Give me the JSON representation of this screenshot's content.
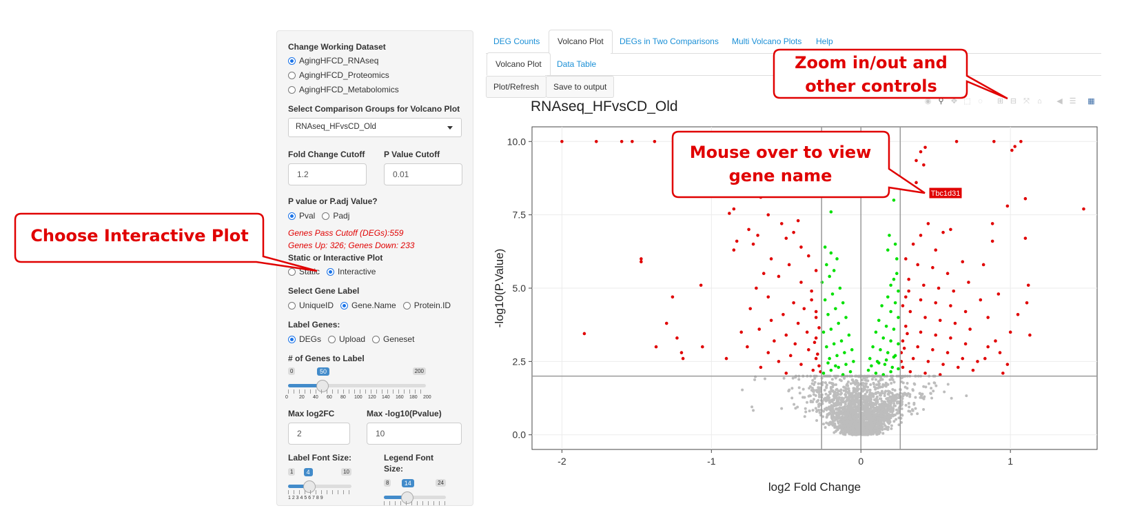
{
  "sidebar": {
    "dataset_label": "Change Working Dataset",
    "datasets": [
      "AgingHFCD_RNAseq",
      "AgingHFCD_Proteomics",
      "AgingHFCD_Metabolomics"
    ],
    "dataset_selected": 0,
    "comparison_label": "Select Comparison Groups for Volcano Plot",
    "comparison_value": "RNAseq_HFvsCD_Old",
    "fc_cutoff_label": "Fold Change Cutoff",
    "fc_cutoff_value": "1.2",
    "p_cutoff_label": "P Value Cutoff",
    "p_cutoff_value": "0.01",
    "pval_type_label": "P value or P.adj Value?",
    "pval_options": [
      "Pval",
      "Padj"
    ],
    "pval_selected": 0,
    "degs_text": "Genes Pass Cutoff (DEGs):559",
    "updown_text": "Genes Up: 326; Genes Down: 233",
    "plot_type_label": "Static or Interactive Plot",
    "plot_type_options": [
      "Static",
      "Interactive"
    ],
    "plot_type_selected": 1,
    "gene_label_label": "Select Gene Label",
    "gene_label_options": [
      "UniqueID",
      "Gene.Name",
      "Protein.ID"
    ],
    "gene_label_selected": 1,
    "label_genes_label": "Label Genes:",
    "label_genes_options": [
      "DEGs",
      "Upload",
      "Geneset"
    ],
    "label_genes_selected": 0,
    "num_genes_label": "# of Genes to Label",
    "num_genes": {
      "min": "0",
      "max": "200",
      "value": "50",
      "fraction": 0.25,
      "ticks": [
        "0",
        "20",
        "40",
        "60",
        "80",
        "100",
        "120",
        "140",
        "160",
        "180",
        "200"
      ]
    },
    "max_log2fc_label": "Max log2FC",
    "max_log2fc_value": "2",
    "max_pval_label": "Max -log10(Pvalue)",
    "max_pval_value": "10",
    "label_font_label": "Label Font Size:",
    "label_font": {
      "min": "1",
      "max": "10",
      "value": "4",
      "fraction": 0.333,
      "ticks": "1 2 3 4 5 6 7 8 9"
    },
    "legend_font_label_1": "Legend Font",
    "legend_font_label_2": "Size:",
    "legend_font": {
      "min": "8",
      "max": "24",
      "value": "14",
      "fraction": 0.375
    }
  },
  "tabs": {
    "main": [
      "DEG Counts",
      "Volcano Plot",
      "DEGs in Two Comparisons",
      "Multi Volcano Plots",
      "Help"
    ],
    "main_active": 1,
    "sub": [
      "Volcano Plot",
      "Data Table"
    ],
    "sub_active": 0,
    "buttons": [
      "Plot/Refresh",
      "Save to output"
    ]
  },
  "plot": {
    "title": "RNAseq_HFvsCD_Old",
    "hover_label": "Tbc1d31",
    "modebar_icons": [
      "camera-icon",
      "zoom-icon",
      "pan-icon",
      "box-select-icon",
      "lasso-icon",
      "zoom-in-icon",
      "zoom-out-icon",
      "autoscale-icon",
      "reset-icon",
      "spike-icon",
      "compare-icon",
      "plotly-logo-icon"
    ]
  },
  "chart_data": {
    "type": "scatter",
    "title": "RNAseq_HFvsCD_Old",
    "xlabel": "log2 Fold Change",
    "ylabel": "-log10(P.Value)",
    "xlim": [
      -2.2,
      1.58
    ],
    "ylim": [
      -0.5,
      10.5
    ],
    "xticks": [
      "-2",
      "-1",
      "0",
      "1"
    ],
    "yticks": [
      "0.0",
      "2.5",
      "5.0",
      "7.5",
      "10.0"
    ],
    "cutoff_x": [
      -0.263,
      0.263
    ],
    "cutoff_y": 2,
    "series": [
      {
        "color": "#e00000",
        "points": [
          [
            -2.0,
            10
          ],
          [
            -1.77,
            10
          ],
          [
            -1.6,
            10
          ],
          [
            -1.53,
            10
          ],
          [
            -1.38,
            10
          ],
          [
            -1.08,
            10
          ],
          [
            -0.92,
            10
          ],
          [
            -0.52,
            10
          ],
          [
            -0.38,
            10
          ],
          [
            0.4,
            9.65
          ],
          [
            0.43,
            9.8
          ],
          [
            0.37,
            9.35
          ],
          [
            0.42,
            9.2
          ],
          [
            0.89,
            10
          ],
          [
            1.07,
            10
          ],
          [
            0.64,
            10
          ],
          [
            1.01,
            9.7
          ],
          [
            1.03,
            9.83
          ],
          [
            1.49,
            7.7
          ],
          [
            1.1,
            8.05
          ],
          [
            0.98,
            7.8
          ],
          [
            0.88,
            7.2
          ],
          [
            1.1,
            6.7
          ],
          [
            0.5,
            8.3
          ],
          [
            0.37,
            8.6
          ],
          [
            0.88,
            6.6
          ],
          [
            -0.47,
            8.5
          ],
          [
            -0.43,
            8.2
          ],
          [
            -0.67,
            8.1
          ],
          [
            -0.93,
            8.2
          ],
          [
            -0.85,
            7.7
          ],
          [
            -0.88,
            7.55
          ],
          [
            -0.42,
            7.3
          ],
          [
            -0.62,
            7.5
          ],
          [
            -0.53,
            7.2
          ],
          [
            -0.69,
            6.8
          ],
          [
            -0.75,
            7.0
          ],
          [
            -0.45,
            6.9
          ],
          [
            -0.83,
            6.6
          ],
          [
            -0.85,
            6.3
          ],
          [
            -0.72,
            6.5
          ],
          [
            -1.47,
            6.0
          ],
          [
            -1.47,
            5.9
          ],
          [
            -1.07,
            5.1
          ],
          [
            -1.26,
            4.7
          ],
          [
            -1.3,
            3.8
          ],
          [
            -1.23,
            3.3
          ],
          [
            -1.37,
            3.0
          ],
          [
            -1.06,
            3.0
          ],
          [
            -1.85,
            3.45
          ],
          [
            -1.2,
            2.8
          ],
          [
            -1.19,
            2.6
          ],
          [
            -0.5,
            6.7
          ],
          [
            -0.4,
            6.4
          ],
          [
            -0.35,
            6.1
          ],
          [
            -0.6,
            6.0
          ],
          [
            -0.48,
            5.8
          ],
          [
            -0.65,
            5.5
          ],
          [
            -0.3,
            5.6
          ],
          [
            -0.55,
            5.4
          ],
          [
            -0.7,
            5.0
          ],
          [
            -0.4,
            5.2
          ],
          [
            -0.33,
            4.9
          ],
          [
            -0.62,
            4.7
          ],
          [
            -0.45,
            4.5
          ],
          [
            -0.74,
            4.3
          ],
          [
            -0.52,
            4.1
          ],
          [
            -0.3,
            4.0
          ],
          [
            -0.6,
            3.9
          ],
          [
            -0.42,
            3.8
          ],
          [
            -0.68,
            3.6
          ],
          [
            -0.36,
            3.5
          ],
          [
            -0.5,
            3.4
          ],
          [
            -0.3,
            3.3
          ],
          [
            -0.58,
            3.2
          ],
          [
            -0.44,
            3.1
          ],
          [
            -0.76,
            3.0
          ],
          [
            -0.35,
            2.9
          ],
          [
            -0.62,
            2.8
          ],
          [
            -0.47,
            2.7
          ],
          [
            -0.3,
            2.6
          ],
          [
            -0.55,
            2.5
          ],
          [
            -0.4,
            2.4
          ],
          [
            -0.67,
            2.3
          ],
          [
            -0.32,
            2.2
          ],
          [
            -0.5,
            2.1
          ],
          [
            -0.28,
            2.35
          ],
          [
            -0.29,
            2.75
          ],
          [
            -0.31,
            3.15
          ],
          [
            -0.28,
            3.65
          ],
          [
            -0.3,
            4.2
          ],
          [
            -0.33,
            4.6
          ],
          [
            -0.38,
            4.3
          ],
          [
            -0.27,
            2.15
          ],
          [
            -0.8,
            3.5
          ],
          [
            -0.9,
            2.6
          ],
          [
            0.35,
            6.5
          ],
          [
            0.4,
            6.8
          ],
          [
            0.45,
            7.2
          ],
          [
            0.5,
            6.3
          ],
          [
            0.55,
            6.9
          ],
          [
            0.6,
            7.0
          ],
          [
            0.3,
            6.0
          ],
          [
            0.38,
            5.8
          ],
          [
            0.48,
            5.7
          ],
          [
            0.58,
            5.5
          ],
          [
            0.68,
            5.9
          ],
          [
            0.32,
            5.3
          ],
          [
            0.42,
            5.1
          ],
          [
            0.52,
            5.0
          ],
          [
            0.62,
            4.9
          ],
          [
            0.72,
            5.2
          ],
          [
            0.82,
            5.8
          ],
          [
            0.3,
            4.7
          ],
          [
            0.4,
            4.6
          ],
          [
            0.5,
            4.5
          ],
          [
            0.6,
            4.4
          ],
          [
            0.7,
            4.2
          ],
          [
            0.8,
            4.6
          ],
          [
            0.33,
            4.2
          ],
          [
            0.43,
            4.0
          ],
          [
            0.53,
            3.9
          ],
          [
            0.63,
            3.8
          ],
          [
            0.73,
            3.6
          ],
          [
            0.85,
            4.0
          ],
          [
            0.3,
            3.7
          ],
          [
            0.4,
            3.5
          ],
          [
            0.5,
            3.4
          ],
          [
            0.6,
            3.3
          ],
          [
            0.7,
            3.1
          ],
          [
            0.9,
            3.2
          ],
          [
            0.28,
            3.2
          ],
          [
            0.38,
            3.0
          ],
          [
            0.48,
            2.9
          ],
          [
            0.58,
            2.8
          ],
          [
            0.68,
            2.6
          ],
          [
            0.78,
            2.5
          ],
          [
            0.27,
            2.8
          ],
          [
            0.35,
            2.6
          ],
          [
            0.45,
            2.5
          ],
          [
            0.55,
            2.4
          ],
          [
            0.65,
            2.3
          ],
          [
            0.75,
            2.2
          ],
          [
            0.28,
            2.3
          ],
          [
            0.33,
            2.15
          ],
          [
            0.43,
            2.1
          ],
          [
            0.53,
            2.05
          ],
          [
            0.27,
            2.5
          ],
          [
            0.29,
            2.95
          ],
          [
            0.31,
            3.45
          ],
          [
            0.28,
            4.4
          ],
          [
            0.32,
            4.9
          ],
          [
            0.95,
            2.1
          ],
          [
            1.0,
            3.5
          ],
          [
            1.13,
            3.4
          ],
          [
            1.05,
            4.1
          ],
          [
            0.92,
            4.8
          ],
          [
            1.12,
            5.1
          ],
          [
            1.11,
            4.5
          ],
          [
            0.93,
            2.8
          ],
          [
            0.98,
            2.4
          ],
          [
            0.85,
            3.0
          ],
          [
            0.83,
            2.6
          ]
        ]
      },
      {
        "color": "#00e000",
        "points": [
          [
            -0.15,
            8.7
          ],
          [
            -0.2,
            7.6
          ],
          [
            0.22,
            8.0
          ],
          [
            0.19,
            6.8
          ],
          [
            0.23,
            6.5
          ],
          [
            0.18,
            6.3
          ],
          [
            0.24,
            6.0
          ],
          [
            -0.24,
            6.4
          ],
          [
            -0.2,
            6.2
          ],
          [
            -0.16,
            6.0
          ],
          [
            -0.23,
            5.8
          ],
          [
            -0.18,
            5.6
          ],
          [
            -0.21,
            5.4
          ],
          [
            -0.26,
            5.2
          ],
          [
            -0.14,
            5.0
          ],
          [
            -0.19,
            4.8
          ],
          [
            -0.24,
            4.6
          ],
          [
            -0.12,
            4.5
          ],
          [
            -0.17,
            4.3
          ],
          [
            -0.22,
            4.1
          ],
          [
            -0.1,
            4.0
          ],
          [
            -0.15,
            3.8
          ],
          [
            -0.2,
            3.6
          ],
          [
            -0.25,
            3.5
          ],
          [
            -0.08,
            3.4
          ],
          [
            -0.13,
            3.2
          ],
          [
            -0.18,
            3.1
          ],
          [
            -0.23,
            3.0
          ],
          [
            -0.06,
            2.9
          ],
          [
            -0.11,
            2.8
          ],
          [
            -0.16,
            2.7
          ],
          [
            -0.21,
            2.6
          ],
          [
            -0.05,
            2.5
          ],
          [
            -0.1,
            2.4
          ],
          [
            -0.15,
            2.3
          ],
          [
            -0.2,
            2.2
          ],
          [
            -0.25,
            2.1
          ],
          [
            -0.07,
            2.15
          ],
          [
            -0.12,
            2.05
          ],
          [
            -0.17,
            2.35
          ],
          [
            -0.22,
            2.45
          ],
          [
            0.24,
            5.5
          ],
          [
            0.22,
            5.3
          ],
          [
            0.2,
            5.1
          ],
          [
            0.25,
            4.9
          ],
          [
            0.18,
            4.7
          ],
          [
            0.23,
            4.5
          ],
          [
            0.14,
            4.4
          ],
          [
            0.2,
            4.2
          ],
          [
            0.25,
            4.0
          ],
          [
            0.12,
            3.9
          ],
          [
            0.17,
            3.7
          ],
          [
            0.22,
            3.6
          ],
          [
            0.1,
            3.5
          ],
          [
            0.15,
            3.3
          ],
          [
            0.2,
            3.2
          ],
          [
            0.25,
            3.1
          ],
          [
            0.08,
            3.0
          ],
          [
            0.13,
            2.9
          ],
          [
            0.18,
            2.8
          ],
          [
            0.23,
            2.7
          ],
          [
            0.06,
            2.6
          ],
          [
            0.11,
            2.5
          ],
          [
            0.16,
            2.4
          ],
          [
            0.21,
            2.3
          ],
          [
            0.05,
            2.2
          ],
          [
            0.1,
            2.1
          ],
          [
            0.15,
            2.05
          ],
          [
            0.2,
            2.15
          ],
          [
            0.25,
            2.25
          ],
          [
            0.07,
            2.35
          ],
          [
            0.12,
            2.45
          ],
          [
            0.17,
            2.55
          ],
          [
            0.22,
            2.65
          ]
        ]
      }
    ]
  },
  "callouts": {
    "choose": "Choose Interactive Plot",
    "zoom_1": "Zoom in/out and",
    "zoom_2": "other controls",
    "mouse_1": "Mouse over to view",
    "mouse_2": "gene name"
  }
}
